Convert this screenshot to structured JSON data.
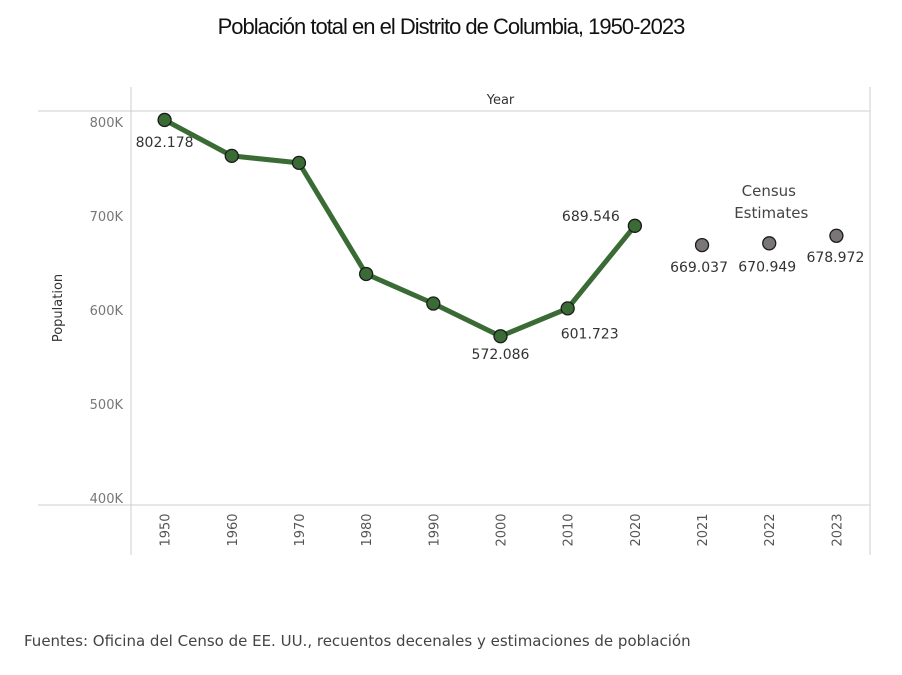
{
  "chart_data": {
    "type": "line",
    "title": "Población total en el Distrito de Columbia, 1950-2023",
    "header_label": "Year",
    "ylabel": "Population",
    "ylim": [
      400000,
      800000
    ],
    "yticks": [
      {
        "value": 800000,
        "label": "800K"
      },
      {
        "value": 700000,
        "label": "700K"
      },
      {
        "value": 600000,
        "label": "600K"
      },
      {
        "value": 500000,
        "label": "500K"
      },
      {
        "value": 400000,
        "label": "400K"
      }
    ],
    "categories": [
      "1950",
      "1960",
      "1970",
      "1980",
      "1990",
      "2000",
      "2010",
      "2020",
      "2021",
      "2022",
      "2023"
    ],
    "series": [
      {
        "name": "Census",
        "color": "#3a6b35",
        "points": [
          {
            "x": "1950",
            "y": 802178,
            "label": "802.178"
          },
          {
            "x": "1960",
            "y": 763956,
            "label": ""
          },
          {
            "x": "1970",
            "y": 756510,
            "label": ""
          },
          {
            "x": "1980",
            "y": 638333,
            "label": ""
          },
          {
            "x": "1990",
            "y": 606900,
            "label": ""
          },
          {
            "x": "2000",
            "y": 572086,
            "label": "572.086"
          },
          {
            "x": "2010",
            "y": 601723,
            "label": "601.723"
          },
          {
            "x": "2020",
            "y": 689546,
            "label": "689.546"
          }
        ]
      },
      {
        "name": "Estimates",
        "color": "#7a7678",
        "points": [
          {
            "x": "2021",
            "y": 669037,
            "label": "669.037"
          },
          {
            "x": "2022",
            "y": 670949,
            "label": "670.949"
          },
          {
            "x": "2023",
            "y": 678972,
            "label": "678.972"
          }
        ]
      }
    ],
    "annotation": [
      "Census",
      "Estimates"
    ]
  },
  "footer": "Fuentes: Oficina del Censo de EE. UU., recuentos decenales y estimaciones de población"
}
